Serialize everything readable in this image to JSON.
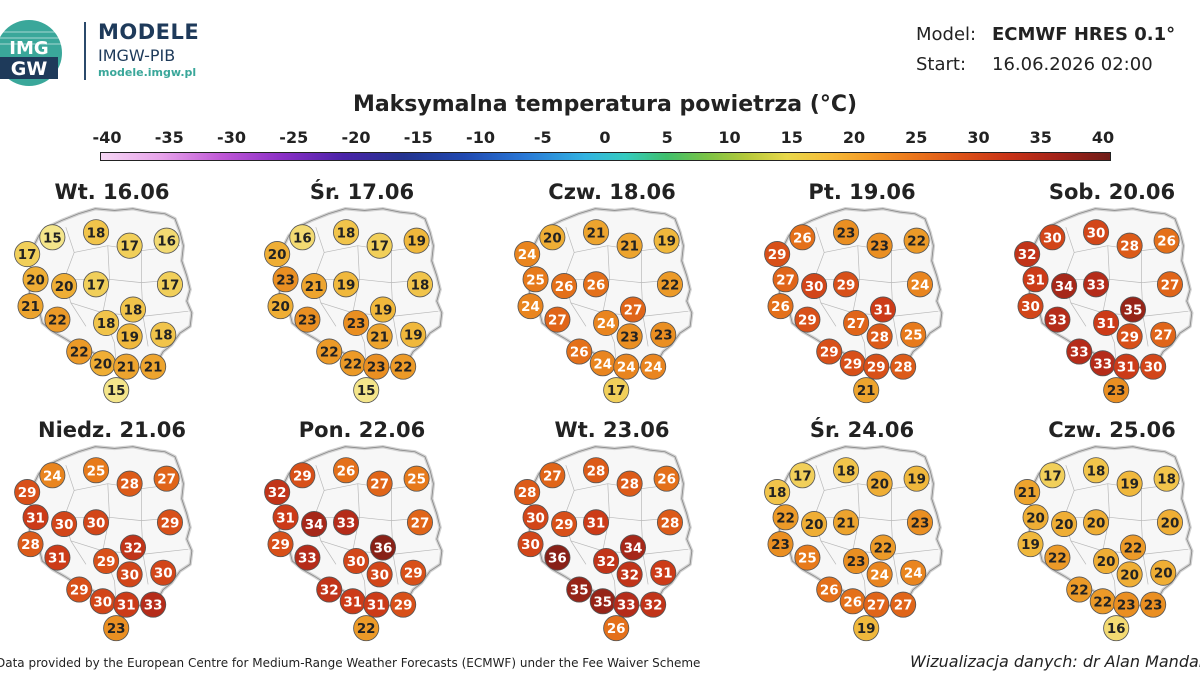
{
  "header": {
    "brand_title": "MODELE",
    "brand_sub": "IMGW-PIB",
    "brand_url": "modele.imgw.pl",
    "logo_text_top": "IMG",
    "logo_text_bottom": "GW",
    "model_label": "Model:",
    "model_value": "ECMWF HRES 0.1°",
    "start_label": "Start:",
    "start_value": "16.06.2026 02:00",
    "title": "Maksymalna temperatura powietrza (°C)"
  },
  "scale": [
    "-40",
    "-35",
    "-30",
    "-25",
    "-20",
    "-15",
    "-10",
    "-5",
    "0",
    "5",
    "10",
    "15",
    "20",
    "25",
    "30",
    "35",
    "40"
  ],
  "days": [
    {
      "title": "Wt. 16.06",
      "values": [
        15,
        18,
        17,
        17,
        16,
        20,
        20,
        17,
        17,
        21,
        18,
        18,
        22,
        19,
        18,
        22,
        20,
        21,
        21,
        15
      ]
    },
    {
      "title": "Śr. 17.06",
      "values": [
        16,
        18,
        20,
        17,
        19,
        23,
        21,
        19,
        18,
        20,
        19,
        23,
        23,
        21,
        19,
        22,
        22,
        23,
        22,
        15
      ]
    },
    {
      "title": "Czw. 18.06",
      "values": [
        20,
        21,
        24,
        21,
        19,
        25,
        26,
        26,
        22,
        24,
        27,
        24,
        27,
        23,
        23,
        26,
        24,
        24,
        24,
        17
      ]
    },
    {
      "title": "Pt. 19.06",
      "values": [
        26,
        23,
        29,
        23,
        22,
        27,
        30,
        29,
        24,
        26,
        31,
        27,
        29,
        28,
        25,
        29,
        29,
        29,
        28,
        21
      ]
    },
    {
      "title": "Sob. 20.06",
      "values": [
        30,
        30,
        32,
        28,
        26,
        31,
        34,
        33,
        27,
        30,
        35,
        31,
        33,
        29,
        27,
        33,
        33,
        31,
        30,
        23
      ]
    },
    {
      "title": "Niedz. 21.06",
      "values": [
        24,
        25,
        29,
        28,
        27,
        31,
        30,
        30,
        29,
        28,
        32,
        29,
        31,
        30,
        30,
        29,
        30,
        31,
        33,
        23
      ]
    },
    {
      "title": "Pon. 22.06",
      "values": [
        29,
        26,
        32,
        27,
        25,
        31,
        34,
        33,
        27,
        29,
        36,
        30,
        33,
        30,
        29,
        32,
        31,
        31,
        29,
        22
      ]
    },
    {
      "title": "Wt. 23.06",
      "values": [
        27,
        28,
        28,
        28,
        26,
        30,
        29,
        31,
        28,
        30,
        34,
        32,
        36,
        32,
        31,
        35,
        35,
        33,
        32,
        26
      ]
    },
    {
      "title": "Śr. 24.06",
      "values": [
        17,
        18,
        18,
        20,
        19,
        22,
        20,
        21,
        23,
        23,
        22,
        23,
        25,
        24,
        24,
        26,
        26,
        27,
        27,
        19
      ]
    },
    {
      "title": "Czw. 25.06",
      "values": [
        17,
        18,
        21,
        19,
        18,
        20,
        20,
        20,
        20,
        19,
        22,
        20,
        22,
        20,
        20,
        22,
        22,
        23,
        23,
        16
      ]
    }
  ],
  "footer": {
    "source": "Data provided by the European Centre for Medium-Range Weather Forecasts (ECMWF) under the Fee Waiver Scheme",
    "credit": "Wizualizacja danych: dr Alan Mandal"
  }
}
